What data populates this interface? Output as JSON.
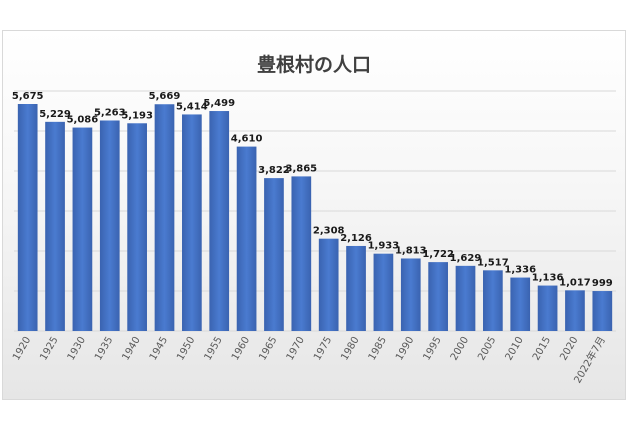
{
  "chart_data": {
    "type": "bar",
    "title": "豊根村の人口",
    "xlabel": "",
    "ylabel": "",
    "categories": [
      "1920",
      "1925",
      "1930",
      "1935",
      "1940",
      "1945",
      "1950",
      "1955",
      "1960",
      "1965",
      "1970",
      "1975",
      "1980",
      "1985",
      "1990",
      "1995",
      "2000",
      "2005",
      "2010",
      "2015",
      "2020",
      "2022年7月"
    ],
    "values": [
      5675,
      5229,
      5086,
      5263,
      5193,
      5669,
      5414,
      5499,
      4610,
      3822,
      3865,
      2308,
      2126,
      1933,
      1813,
      1722,
      1629,
      1517,
      1336,
      1136,
      1017,
      999
    ],
    "value_labels": [
      "5,675",
      "5,229",
      "5,086",
      "5,263",
      "5,193",
      "5,669",
      "5,414",
      "5,499",
      "4,610",
      "3,822",
      "3,865",
      "2,308",
      "2,126",
      "1,933",
      "1,813",
      "1,722",
      "1,629",
      "1,517",
      "1,336",
      "1,136",
      "1,017",
      "999"
    ],
    "ylim": [
      0,
      6000
    ],
    "grid": true,
    "legend": "none",
    "bar_color": "#4472c4"
  }
}
